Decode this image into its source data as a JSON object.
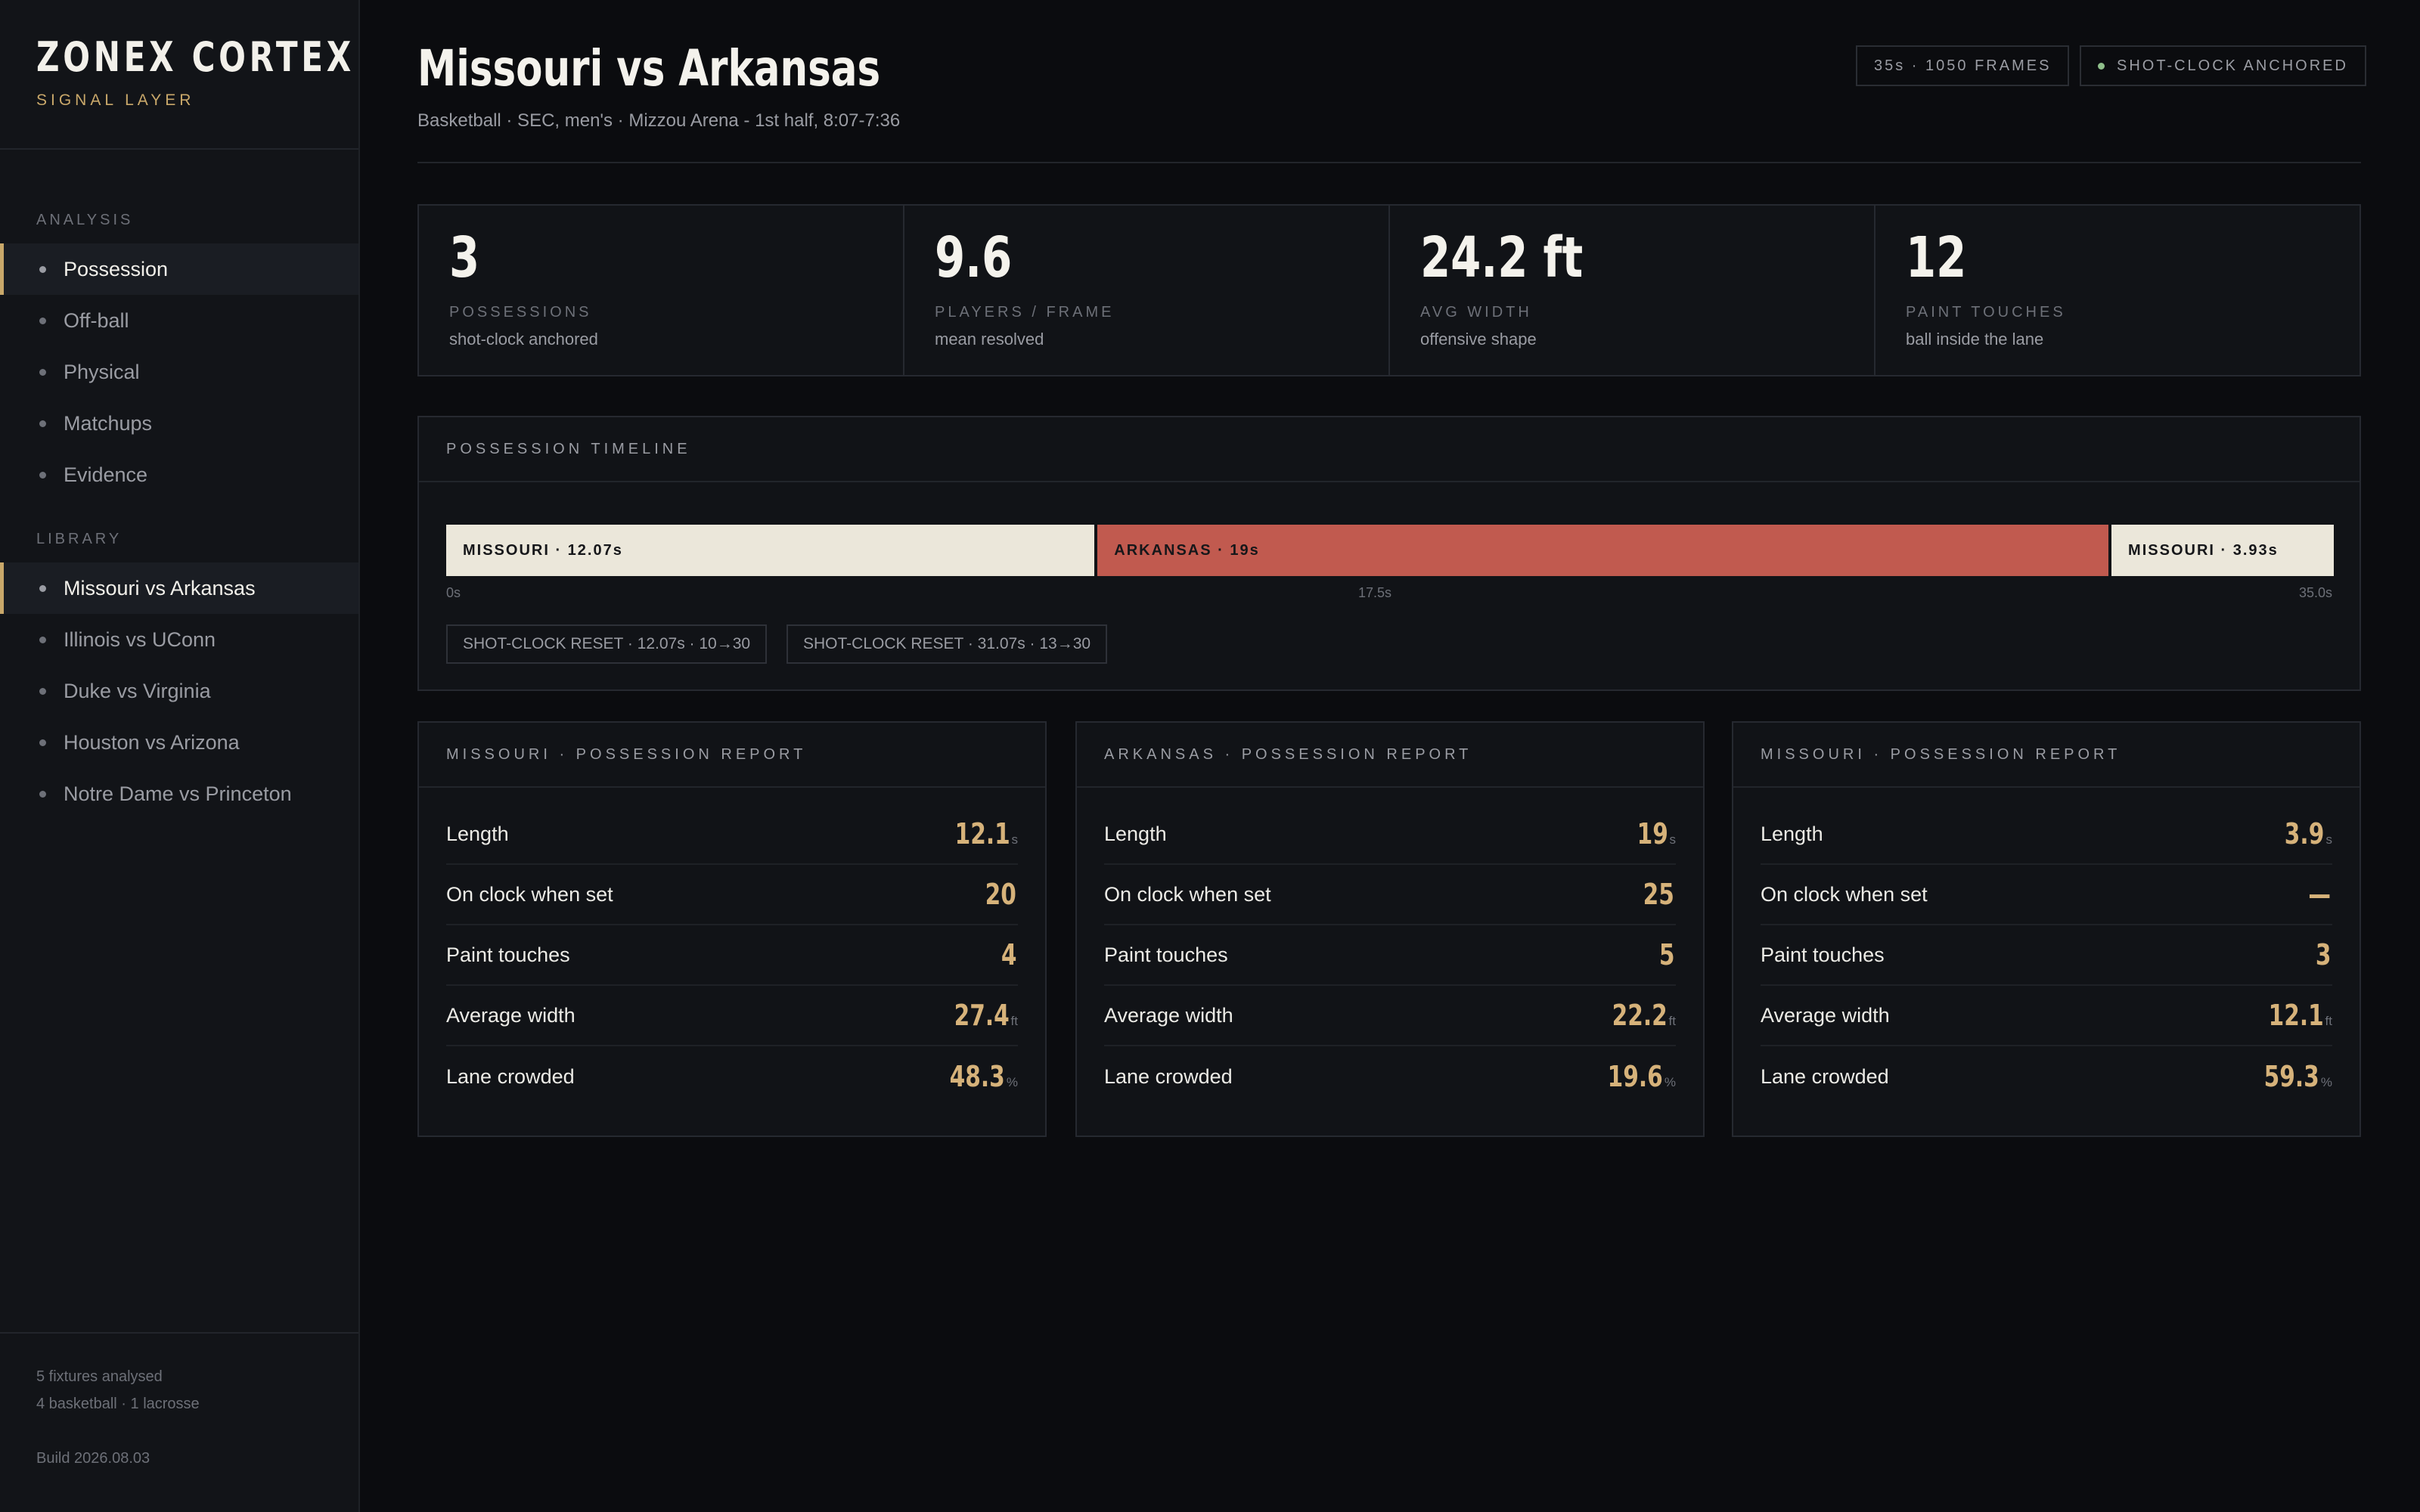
{
  "brand": {
    "name": "ZONEX CORTEX",
    "sub": "SIGNAL LAYER"
  },
  "nav": {
    "analysis_label": "ANALYSIS",
    "analysis": [
      {
        "label": "Possession",
        "active": true
      },
      {
        "label": "Off-ball",
        "active": false
      },
      {
        "label": "Physical",
        "active": false
      },
      {
        "label": "Matchups",
        "active": false
      },
      {
        "label": "Evidence",
        "active": false
      }
    ],
    "library_label": "LIBRARY",
    "library": [
      {
        "label": "Missouri vs Arkansas",
        "active": true
      },
      {
        "label": "Illinois vs UConn",
        "active": false
      },
      {
        "label": "Duke vs Virginia",
        "active": false
      },
      {
        "label": "Houston vs Arizona",
        "active": false
      },
      {
        "label": "Notre Dame vs Princeton",
        "active": false
      }
    ]
  },
  "footer": {
    "line1": "5 fixtures analysed",
    "line2": "4 basketball · 1 lacrosse",
    "build": "Build 2026.08.03"
  },
  "header": {
    "title": "Missouri vs Arkansas",
    "subtitle": "Basketball · SEC, men's · Mizzou Arena - 1st half, 8:07-7:36",
    "chip_frames": "35s · 1050 FRAMES",
    "chip_anchor": "SHOT-CLOCK ANCHORED"
  },
  "stats": [
    {
      "value": "3",
      "label": "POSSESSIONS",
      "note": "shot-clock anchored"
    },
    {
      "value": "9.6",
      "label": "PLAYERS / FRAME",
      "note": "mean resolved"
    },
    {
      "value": "24.2 ft",
      "label": "AVG WIDTH",
      "note": "offensive shape"
    },
    {
      "value": "12",
      "label": "PAINT TOUCHES",
      "note": "ball inside the lane"
    }
  ],
  "timeline": {
    "title": "POSSESSION TIMELINE",
    "total_seconds": 35,
    "segments": [
      {
        "label": "MISSOURI · 12.07s",
        "duration": 12.07,
        "color": "#ebe7da"
      },
      {
        "label": "ARKANSAS · 19s",
        "duration": 19,
        "color": "#c15a4f"
      },
      {
        "label": "MISSOURI · 3.93s",
        "duration": 3.93,
        "color": "#ebe7da"
      }
    ],
    "ticks": [
      "0s",
      "17.5s",
      "35.0s"
    ],
    "events": [
      "SHOT-CLOCK RESET · 12.07s · 10→30",
      "SHOT-CLOCK RESET · 31.07s · 13→30"
    ]
  },
  "reports": [
    {
      "title": "MISSOURI · POSSESSION REPORT",
      "rows": [
        {
          "label": "Length",
          "value": "12.1",
          "unit": "s"
        },
        {
          "label": "On clock when set",
          "value": "20",
          "unit": ""
        },
        {
          "label": "Paint touches",
          "value": "4",
          "unit": ""
        },
        {
          "label": "Average width",
          "value": "27.4",
          "unit": "ft"
        },
        {
          "label": "Lane crowded",
          "value": "48.3",
          "unit": "%"
        }
      ]
    },
    {
      "title": "ARKANSAS · POSSESSION REPORT",
      "rows": [
        {
          "label": "Length",
          "value": "19",
          "unit": "s"
        },
        {
          "label": "On clock when set",
          "value": "25",
          "unit": ""
        },
        {
          "label": "Paint touches",
          "value": "5",
          "unit": ""
        },
        {
          "label": "Average width",
          "value": "22.2",
          "unit": "ft"
        },
        {
          "label": "Lane crowded",
          "value": "19.6",
          "unit": "%"
        }
      ]
    },
    {
      "title": "MISSOURI · POSSESSION REPORT",
      "rows": [
        {
          "label": "Length",
          "value": "3.9",
          "unit": "s"
        },
        {
          "label": "On clock when set",
          "value": "—",
          "unit": ""
        },
        {
          "label": "Paint touches",
          "value": "3",
          "unit": ""
        },
        {
          "label": "Average width",
          "value": "12.1",
          "unit": "ft"
        },
        {
          "label": "Lane crowded",
          "value": "59.3",
          "unit": "%"
        }
      ]
    }
  ]
}
